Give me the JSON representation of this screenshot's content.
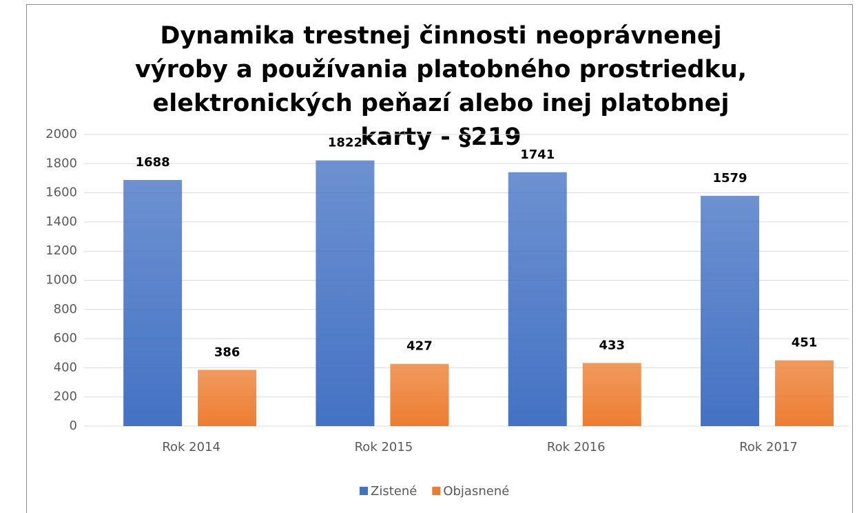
{
  "chart_data": {
    "type": "bar",
    "title": "Dynamika trestnej činnosti neoprávnenej výroby a používania platobného prostriedku, elektronických peňazí alebo inej platobnej karty - §219",
    "categories": [
      "Rok 2014",
      "Rok 2015",
      "Rok 2016",
      "Rok 2017"
    ],
    "series": [
      {
        "name": "Zistené",
        "color": "#4472c4",
        "values": [
          1688,
          1822,
          1741,
          1579
        ]
      },
      {
        "name": "Objasnené",
        "color": "#ed7d31",
        "values": [
          386,
          427,
          433,
          451
        ]
      }
    ],
    "ylim": [
      0,
      2000
    ],
    "yticks": [
      0,
      200,
      400,
      600,
      800,
      1000,
      1200,
      1400,
      1600,
      1800,
      2000
    ],
    "grid": true,
    "legend": "bottom"
  }
}
